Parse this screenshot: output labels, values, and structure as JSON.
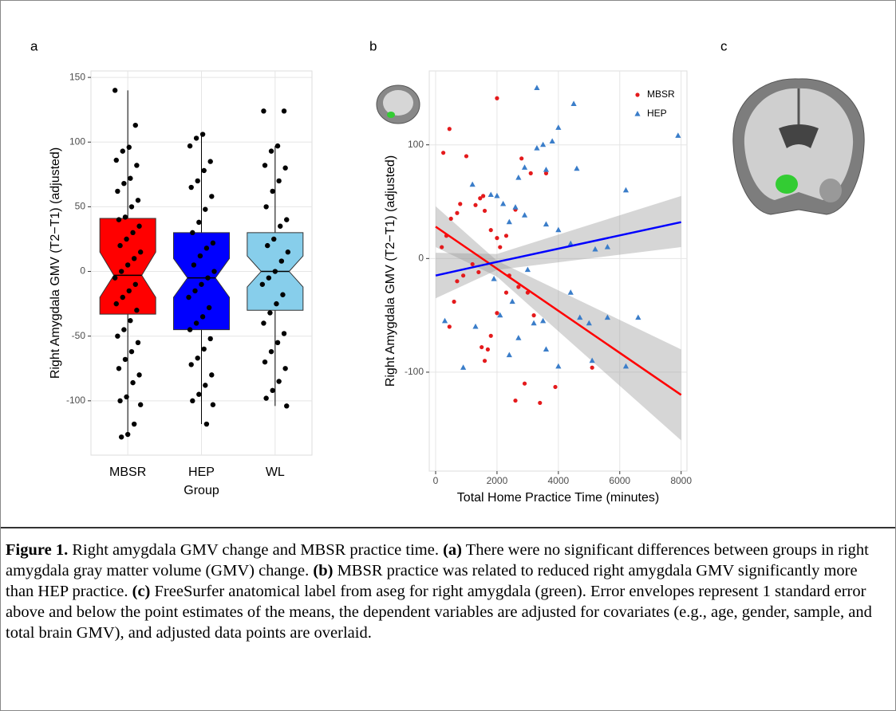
{
  "panel_c_label": "c",
  "chart_data": [
    {
      "type": "box",
      "panel_label": "a",
      "x_label": "Group",
      "y_label": "Right Amygdala GMV (T2−T1) (adjusted)",
      "categories": [
        "MBSR",
        "HEP",
        "WL"
      ],
      "colors": [
        "#ff0000",
        "#0000ff",
        "#87ceeb"
      ],
      "q1": [
        -33,
        -45,
        -30
      ],
      "median": [
        -3,
        -5,
        0
      ],
      "q3": [
        41,
        30,
        30
      ],
      "notch_low": [
        -20,
        -20,
        -12
      ],
      "notch_high": [
        15,
        10,
        12
      ],
      "whisker_low": [
        -125,
        -118,
        -104
      ],
      "whisker_high": [
        140,
        106,
        97
      ],
      "points": [
        [
          140,
          113,
          96,
          93,
          86,
          82,
          72,
          68,
          62,
          55,
          50,
          42,
          40,
          35,
          30,
          25,
          20,
          15,
          10,
          5,
          0,
          -5,
          -10,
          -15,
          -20,
          -25,
          -30,
          -38,
          -45,
          -50,
          -55,
          -62,
          -68,
          -75,
          -80,
          -86,
          -97,
          -100,
          -103,
          -118,
          -126,
          -128
        ],
        [
          106,
          103,
          97,
          85,
          78,
          70,
          65,
          58,
          48,
          38,
          30,
          22,
          18,
          12,
          5,
          0,
          -5,
          -10,
          -15,
          -20,
          -28,
          -35,
          -40,
          -45,
          -52,
          -60,
          -67,
          -72,
          -80,
          -88,
          -95,
          -100,
          -103,
          -118
        ],
        [
          124,
          124,
          97,
          93,
          82,
          80,
          70,
          62,
          50,
          40,
          35,
          25,
          20,
          15,
          8,
          0,
          -5,
          -10,
          -18,
          -25,
          -32,
          -40,
          -48,
          -55,
          -62,
          -70,
          -75,
          -85,
          -92,
          -98,
          -104
        ]
      ],
      "ylim": [
        -142,
        155
      ],
      "yticks": [
        -100,
        -50,
        0,
        50,
        100,
        150
      ],
      "grid": true
    },
    {
      "type": "scatter",
      "panel_label": "b",
      "x_label": "Total Home Practice Time (minutes)",
      "y_label": "Right Amygdala GMV (T2−T1) (adjusted)",
      "xlim": [
        -208,
        8190
      ],
      "xticks": [
        0,
        2000,
        4000,
        6000,
        8000
      ],
      "ylim": [
        -187,
        165
      ],
      "yticks": [
        -100,
        0,
        100
      ],
      "grid": true,
      "legend": "top-right",
      "series": [
        {
          "name": "MBSR",
          "color": "#e41a1c",
          "marker": "circle",
          "line_color": "#ff0000",
          "x": [
            450,
            250,
            1000,
            2000,
            200,
            500,
            700,
            800,
            1300,
            1450,
            1550,
            1600,
            1800,
            2000,
            2300,
            2100,
            2400,
            2800,
            2600,
            3100,
            3600,
            2700,
            3000,
            3200,
            1500,
            1600,
            1800,
            2000,
            2600,
            2900,
            3400,
            3900,
            5100,
            700,
            900,
            1200,
            1400,
            450,
            600,
            350,
            2300,
            1700
          ],
          "y": [
            114,
            93,
            90,
            141,
            10,
            35,
            40,
            48,
            47,
            53,
            55,
            42,
            25,
            18,
            20,
            10,
            -15,
            88,
            43,
            75,
            75,
            -25,
            -30,
            -50,
            -78,
            -90,
            -68,
            -48,
            -125,
            -110,
            -127,
            -113,
            -96,
            -20,
            -15,
            -5,
            -12,
            -60,
            -38,
            20,
            -30,
            -80
          ],
          "fit_x": [
            0,
            2000,
            8000
          ],
          "fit_y": [
            28,
            -9,
            -120
          ],
          "band_low": [
            10,
            -16,
            -160
          ],
          "band_high": [
            46,
            -2,
            -80
          ]
        },
        {
          "name": "HEP",
          "color": "#3a7dc9",
          "marker": "triangle",
          "line_color": "#0000ff",
          "x": [
            3300,
            4500,
            4000,
            7900,
            3500,
            3800,
            3300,
            4600,
            2900,
            3600,
            2700,
            1200,
            1800,
            2000,
            2200,
            2600,
            2900,
            2400,
            3600,
            4000,
            4400,
            5200,
            5600,
            6200,
            3000,
            1900,
            2500,
            2100,
            2700,
            3200,
            3500,
            4400,
            4700,
            5000,
            5600,
            6600,
            6200,
            5100,
            4000,
            2400,
            900,
            300,
            1300,
            3600
          ],
          "y": [
            150,
            136,
            115,
            108,
            100,
            103,
            97,
            79,
            80,
            78,
            71,
            65,
            56,
            55,
            48,
            45,
            38,
            32,
            30,
            25,
            13,
            8,
            10,
            60,
            -10,
            -18,
            -38,
            -50,
            -70,
            -57,
            -55,
            -30,
            -52,
            -57,
            -52,
            -52,
            -95,
            -90,
            -95,
            -85,
            -96,
            -55,
            -60,
            -80
          ],
          "fit_x": [
            0,
            2000,
            8000
          ],
          "fit_y": [
            -15,
            -3,
            32
          ],
          "band_low": [
            -35,
            -10,
            10
          ],
          "band_high": [
            5,
            4,
            55
          ]
        }
      ]
    }
  ],
  "caption": {
    "segments": [
      {
        "bold": "Figure 1."
      },
      {
        "text": " Right amygdala GMV change and MBSR practice time. "
      },
      {
        "bold": "(a)"
      },
      {
        "text": " There were no significant differences between groups in right amygdala gray matter volume (GMV) change. "
      },
      {
        "bold": "(b)"
      },
      {
        "text": " MBSR practice was related to reduced right amygdala GMV significantly more than HEP practice. "
      },
      {
        "bold": "(c)"
      },
      {
        "text": " FreeSurfer anatomical label from aseg for right amygdala (green). Error envelopes represent 1 standard error above and below the point estimates of the means, the dependent variables are adjusted for covariates (e.g., age, gender, sample, and total brain GMV), and adjusted data points are overlaid."
      }
    ]
  }
}
